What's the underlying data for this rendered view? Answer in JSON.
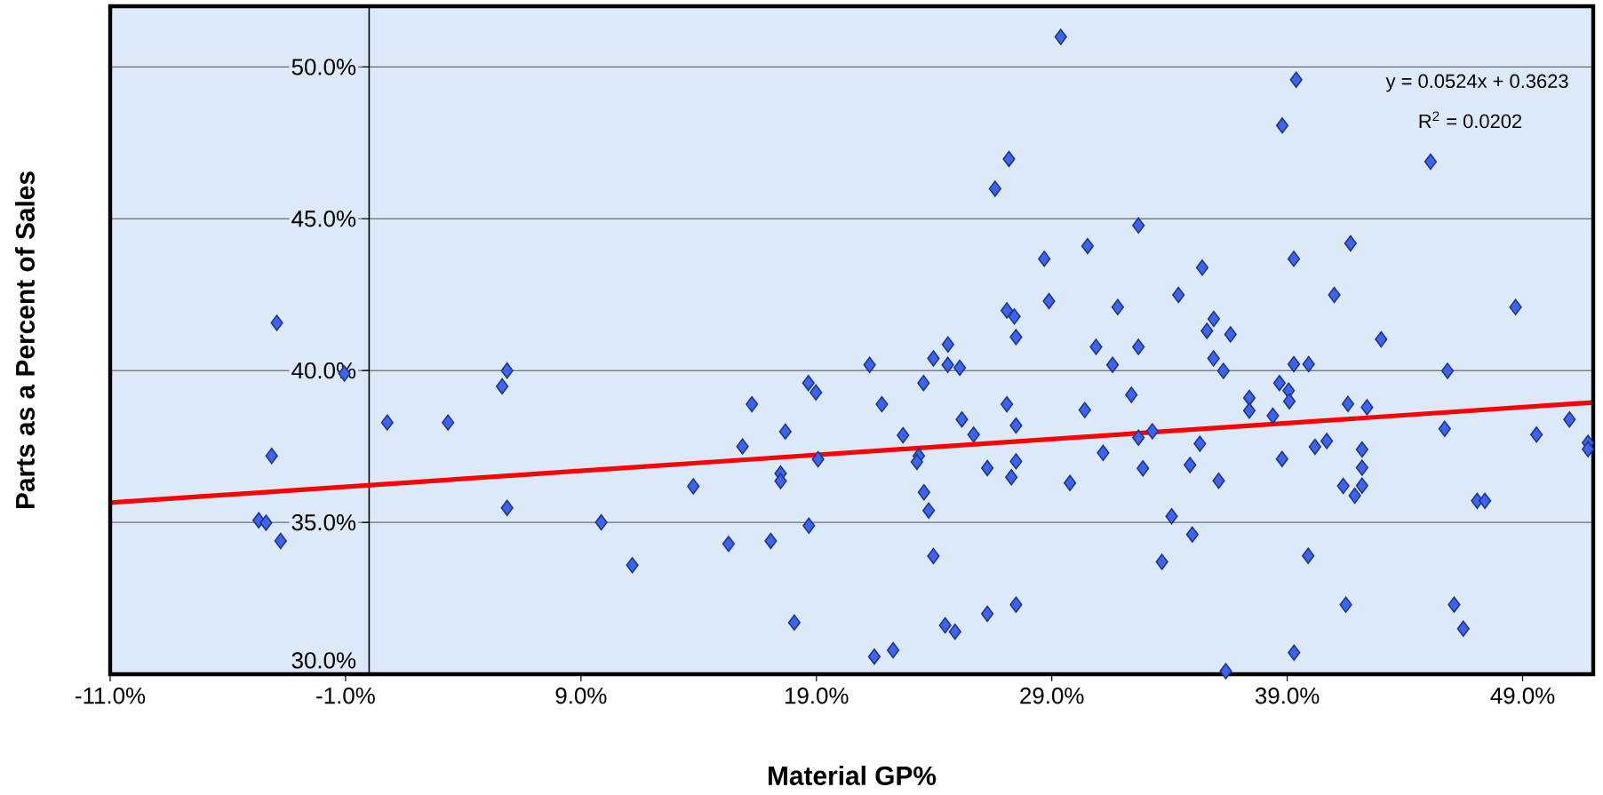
{
  "chart_data": {
    "type": "scatter",
    "xlabel": "Material GP%",
    "ylabel": "Parts as a Percent of Sales",
    "annotations": [
      "y = 0.0524x + 0.3623",
      "R$^{2}$ = 0.0202"
    ],
    "xlim": [
      -11,
      52
    ],
    "ylim": [
      30,
      52
    ],
    "xticks": [
      {
        "value": -11,
        "label": "-11.0%"
      },
      {
        "value": -1,
        "label": "-1.0%"
      },
      {
        "value": 9,
        "label": "9.0%"
      },
      {
        "value": 19,
        "label": "19.0%"
      },
      {
        "value": 29,
        "label": "29.0%"
      },
      {
        "value": 39,
        "label": "39.0%"
      },
      {
        "value": 49,
        "label": "49.0%"
      }
    ],
    "yticks": [
      {
        "value": 30,
        "label": "30.0%"
      },
      {
        "value": 35,
        "label": "35.0%"
      },
      {
        "value": 40,
        "label": "40.0%"
      },
      {
        "value": 45,
        "label": "45.0%"
      },
      {
        "value": 50,
        "label": "50.0%"
      }
    ],
    "grid": "y",
    "series": [
      {
        "marker": "diamond",
        "color": "#3d63f2",
        "x": [
          -3.92,
          29.38,
          27.18,
          26.59,
          30.52,
          28.68,
          28.88,
          27.09,
          27.41,
          27.48,
          24.59,
          39.38,
          38.79,
          45.09,
          32.68,
          41.69,
          39.28,
          35.39,
          34.38,
          41.0,
          31.8,
          48.7,
          35.88,
          35.59,
          36.59,
          42.99,
          30.88,
          32.68,
          31.58,
          35.87,
          36.29,
          39.28,
          39.91,
          45.81,
          32.38,
          38.67,
          39.06,
          37.39,
          39.09,
          37.39,
          38.39,
          41.58,
          42.39,
          30.4,
          32.68,
          33.27,
          31.18,
          35.29,
          32.87,
          34.87,
          36.09,
          38.78,
          40.18,
          40.68,
          42.18,
          42.18,
          42.18,
          41.38,
          41.87,
          45.69,
          49.59,
          50.99,
          51.78,
          51.78,
          47.07,
          47.4,
          34.09,
          34.97,
          33.68,
          39.89,
          41.49,
          46.09,
          46.48,
          39.29,
          36.39,
          21.26,
          23.97,
          24.58,
          25.09,
          18.66,
          18.98,
          16.26,
          21.78,
          23.55,
          27.09,
          25.18,
          27.48,
          25.68,
          17.68,
          22.68,
          15.86,
          19.07,
          23.35,
          23.27,
          26.26,
          27.48,
          27.28,
          29.77,
          17.48,
          17.48,
          13.77,
          23.57,
          23.77,
          9.86,
          18.68,
          15.27,
          17.06,
          11.18,
          23.97,
          18.06,
          24.47,
          24.89,
          26.26,
          27.48,
          21.46,
          22.26,
          -1.05,
          5.86,
          5.65,
          0.77,
          3.35,
          -4.14,
          5.86,
          -4.69,
          -4.38,
          -3.76
        ],
        "values": [
          41.57,
          50.99,
          46.97,
          45.99,
          44.1,
          43.68,
          42.29,
          41.98,
          41.78,
          41.1,
          40.86,
          49.58,
          48.07,
          46.88,
          44.78,
          44.19,
          43.68,
          43.39,
          42.49,
          42.49,
          42.09,
          42.09,
          41.7,
          41.31,
          41.19,
          41.03,
          40.78,
          40.78,
          40.19,
          40.4,
          39.99,
          40.21,
          40.21,
          39.99,
          39.2,
          39.59,
          39.34,
          39.1,
          38.99,
          38.68,
          38.51,
          38.9,
          38.79,
          38.7,
          37.79,
          38.0,
          37.29,
          37.59,
          36.78,
          36.89,
          36.37,
          37.09,
          37.49,
          37.68,
          37.4,
          36.8,
          36.21,
          36.2,
          35.88,
          38.08,
          37.89,
          38.39,
          37.62,
          37.41,
          35.71,
          35.71,
          35.2,
          34.6,
          33.7,
          33.9,
          32.29,
          32.29,
          31.5,
          30.71,
          30.1,
          40.19,
          40.4,
          40.19,
          40.09,
          39.59,
          39.28,
          38.89,
          38.89,
          39.59,
          38.89,
          38.39,
          38.19,
          37.89,
          37.99,
          37.87,
          37.5,
          37.08,
          37.19,
          36.99,
          36.79,
          37.01,
          36.49,
          36.3,
          36.61,
          36.36,
          36.19,
          35.99,
          35.39,
          35.0,
          34.89,
          34.29,
          34.39,
          33.59,
          33.89,
          31.7,
          31.61,
          31.4,
          31.99,
          32.29,
          30.58,
          30.79,
          39.9,
          40.0,
          39.48,
          38.29,
          38.29,
          37.19,
          35.48,
          35.07,
          34.99,
          34.39
        ]
      },
      {
        "type": "line",
        "color": "#ff0000",
        "x": [
          -11,
          52
        ],
        "values": [
          35.65,
          38.95
        ]
      }
    ]
  }
}
